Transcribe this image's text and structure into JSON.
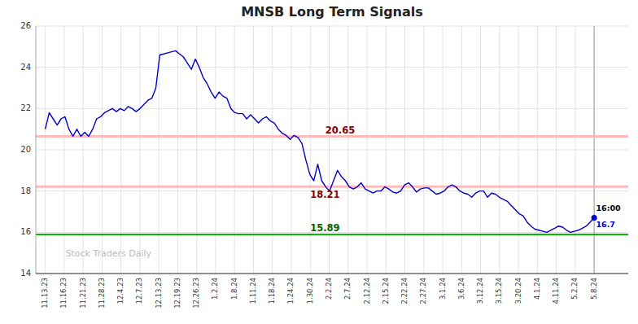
{
  "chart_data": {
    "type": "line",
    "title": "MNSB Long Term Signals",
    "xlim": [
      -0.5,
      30.8
    ],
    "xticks": [
      {
        "value": 0,
        "label": "11.13.23"
      },
      {
        "value": 1,
        "label": "11.16.23"
      },
      {
        "value": 2,
        "label": "11.21.23"
      },
      {
        "value": 3,
        "label": "11.28.23"
      },
      {
        "value": 4,
        "label": "12.4.23"
      },
      {
        "value": 5,
        "label": "12.7.23"
      },
      {
        "value": 6,
        "label": "12.13.23"
      },
      {
        "value": 7,
        "label": "12.19.23"
      },
      {
        "value": 8,
        "label": "12.26.23"
      },
      {
        "value": 9,
        "label": "1.2.24"
      },
      {
        "value": 10,
        "label": "1.8.24"
      },
      {
        "value": 11,
        "label": "1.11.24"
      },
      {
        "value": 12,
        "label": "1.18.24"
      },
      {
        "value": 13,
        "label": "1.24.24"
      },
      {
        "value": 14,
        "label": "1.30.24"
      },
      {
        "value": 15,
        "label": "2.2.24"
      },
      {
        "value": 16,
        "label": "2.7.24"
      },
      {
        "value": 17,
        "label": "2.12.24"
      },
      {
        "value": 18,
        "label": "2.15.24"
      },
      {
        "value": 19,
        "label": "2.22.24"
      },
      {
        "value": 20,
        "label": "2.27.24"
      },
      {
        "value": 21,
        "label": "3.1.24"
      },
      {
        "value": 22,
        "label": "3.6.24"
      },
      {
        "value": 23,
        "label": "3.12.24"
      },
      {
        "value": 24,
        "label": "3.15.24"
      },
      {
        "value": 25,
        "label": "3.20.24"
      },
      {
        "value": 26,
        "label": "4.1.24"
      },
      {
        "value": 27,
        "label": "4.11.24"
      },
      {
        "value": 28,
        "label": "5.2.24"
      },
      {
        "value": 29,
        "label": "5.8.24"
      }
    ],
    "ylim": [
      14,
      26
    ],
    "yticks": [
      14,
      16,
      18,
      20,
      22,
      24,
      26
    ],
    "grid": true,
    "series": [
      {
        "color": "#0000cc",
        "values": [
          21.0,
          21.8,
          21.5,
          21.2,
          21.5,
          21.6,
          21.0,
          20.65,
          21.0,
          20.65,
          20.85,
          20.65,
          21.0,
          21.5,
          21.6,
          21.8,
          21.9,
          22.0,
          21.85,
          22.0,
          21.9,
          22.1,
          22.0,
          21.85,
          22.0,
          22.2,
          22.4,
          22.5,
          23.0,
          24.6,
          24.65,
          24.7,
          24.75,
          24.8,
          24.65,
          24.5,
          24.2,
          23.9,
          24.4,
          24.0,
          23.5,
          23.2,
          22.8,
          22.5,
          22.8,
          22.6,
          22.5,
          22.0,
          21.8,
          21.75,
          21.75,
          21.5,
          21.7,
          21.5,
          21.3,
          21.5,
          21.6,
          21.4,
          21.3,
          21.0,
          20.8,
          20.7,
          20.5,
          20.7,
          20.6,
          20.3,
          19.5,
          18.8,
          18.5,
          19.3,
          18.5,
          18.21,
          18.0,
          18.5,
          19.0,
          18.7,
          18.5,
          18.2,
          18.1,
          18.2,
          18.4,
          18.1,
          18.0,
          17.9,
          18.0,
          18.0,
          18.2,
          18.1,
          17.95,
          17.9,
          18.0,
          18.3,
          18.4,
          18.2,
          17.95,
          18.1,
          18.15,
          18.15,
          18.0,
          17.85,
          17.9,
          18.0,
          18.2,
          18.3,
          18.2,
          18.0,
          17.9,
          17.85,
          17.7,
          17.9,
          18.0,
          18.0,
          17.7,
          17.9,
          17.85,
          17.7,
          17.6,
          17.5,
          17.3,
          17.1,
          16.9,
          16.8,
          16.5,
          16.3,
          16.15,
          16.1,
          16.05,
          16.0,
          16.1,
          16.2,
          16.3,
          16.25,
          16.1,
          16.0,
          16.05,
          16.1,
          16.2,
          16.3,
          16.5,
          16.7
        ]
      }
    ],
    "reference_lines": [
      {
        "value": 20.65,
        "label": "20.65",
        "color": "#ffbbbb",
        "label_color": "#880000"
      },
      {
        "value": 18.21,
        "label": "18.21",
        "color": "#ffbbbb",
        "label_color": "#880000"
      },
      {
        "value": 15.89,
        "label": "15.89",
        "color": "#00bb00",
        "label_color": "#006600"
      }
    ],
    "last_point": {
      "value": 16.7,
      "time_label": "16:00"
    },
    "watermark": "Stock Traders Daily"
  }
}
